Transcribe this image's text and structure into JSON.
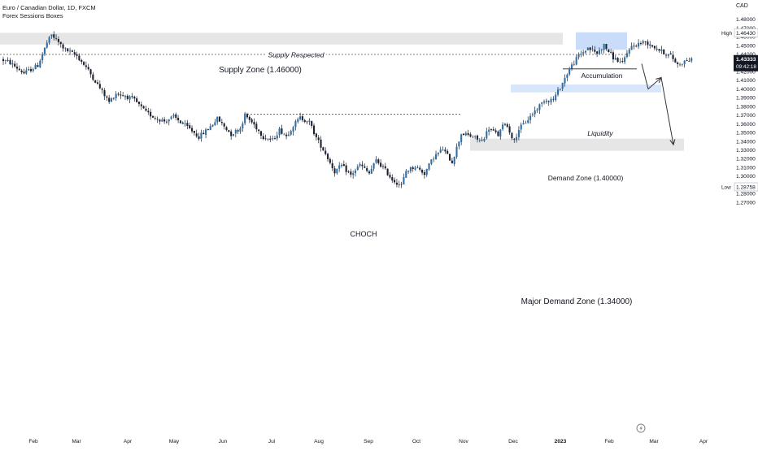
{
  "header": {
    "symbol_line": "Euro / Canadian Dollar, 1D, FXCM",
    "indicator": "Forex Sessions Boxes",
    "currency": "CAD"
  },
  "colors": {
    "up_candle": "#2f6fa8",
    "down_candle": "#1e2230",
    "zone_grey": "#e6e6e6",
    "zone_blue": "#d7e6fb",
    "accum_blue": "#c9dcfa",
    "price_label_bg": "#131722"
  },
  "chart_data": {
    "type": "candlestick",
    "y_axis": {
      "ticks": [
        "1.48000",
        "1.47000",
        "1.46000",
        "1.45000",
        "1.44000",
        "1.43000",
        "1.42000",
        "1.41000",
        "1.40000",
        "1.39000",
        "1.38000",
        "1.37000",
        "1.36000",
        "1.35000",
        "1.34000",
        "1.33000",
        "1.32000",
        "1.31000",
        "1.30000",
        "1.29000",
        "1.28000",
        "1.27000"
      ],
      "range": [
        1.2665,
        1.4858
      ]
    },
    "x_axis": {
      "ticks": [
        "Feb",
        "Mar",
        "Apr",
        "May",
        "Jun",
        "Jul",
        "Aug",
        "Sep",
        "Oct",
        "Nov",
        "Dec",
        "2023",
        "Feb",
        "Mar",
        "Apr"
      ]
    },
    "high_label": "High",
    "high_value": "1.46430",
    "low_label": "Low",
    "low_value": "1.28758",
    "last_price": "1.43333",
    "countdown": "09:42:18",
    "anchors": [
      [
        0,
        1.434
      ],
      [
        4,
        1.43
      ],
      [
        10,
        1.418
      ],
      [
        16,
        1.427
      ],
      [
        20,
        1.453
      ],
      [
        22,
        1.462
      ],
      [
        28,
        1.445
      ],
      [
        33,
        1.438
      ],
      [
        37,
        1.425
      ],
      [
        42,
        1.405
      ],
      [
        47,
        1.385
      ],
      [
        50,
        1.395
      ],
      [
        54,
        1.392
      ],
      [
        58,
        1.387
      ],
      [
        63,
        1.373
      ],
      [
        67,
        1.367
      ],
      [
        71,
        1.363
      ],
      [
        75,
        1.368
      ],
      [
        79,
        1.36
      ],
      [
        83,
        1.352
      ],
      [
        86,
        1.345
      ],
      [
        90,
        1.354
      ],
      [
        94,
        1.366
      ],
      [
        97,
        1.357
      ],
      [
        100,
        1.348
      ],
      [
        104,
        1.355
      ],
      [
        106,
        1.37
      ],
      [
        110,
        1.359
      ],
      [
        114,
        1.345
      ],
      [
        118,
        1.341
      ],
      [
        121,
        1.353
      ],
      [
        124,
        1.346
      ],
      [
        127,
        1.358
      ],
      [
        130,
        1.367
      ],
      [
        134,
        1.362
      ],
      [
        137,
        1.344
      ],
      [
        141,
        1.326
      ],
      [
        145,
        1.305
      ],
      [
        148,
        1.312
      ],
      [
        152,
        1.301
      ],
      [
        156,
        1.313
      ],
      [
        160,
        1.303
      ],
      [
        163,
        1.318
      ],
      [
        166,
        1.31
      ],
      [
        170,
        1.296
      ],
      [
        174,
        1.289
      ],
      [
        176,
        1.306
      ],
      [
        180,
        1.311
      ],
      [
        184,
        1.303
      ],
      [
        188,
        1.322
      ],
      [
        192,
        1.331
      ],
      [
        196,
        1.316
      ],
      [
        200,
        1.349
      ],
      [
        205,
        1.345
      ],
      [
        209,
        1.34
      ],
      [
        212,
        1.355
      ],
      [
        216,
        1.347
      ],
      [
        219,
        1.362
      ],
      [
        223,
        1.34
      ],
      [
        225,
        1.354
      ],
      [
        228,
        1.362
      ],
      [
        232,
        1.375
      ],
      [
        236,
        1.387
      ],
      [
        240,
        1.388
      ],
      [
        243,
        1.402
      ],
      [
        247,
        1.423
      ],
      [
        251,
        1.438
      ],
      [
        255,
        1.447
      ],
      [
        259,
        1.441
      ],
      [
        262,
        1.45
      ],
      [
        266,
        1.436
      ],
      [
        270,
        1.429
      ],
      [
        273,
        1.447
      ],
      [
        277,
        1.452
      ],
      [
        280,
        1.454
      ],
      [
        284,
        1.448
      ],
      [
        287,
        1.443
      ],
      [
        291,
        1.438
      ],
      [
        294,
        1.428
      ],
      [
        298,
        1.433
      ],
      [
        300,
        1.433
      ]
    ],
    "annotations": [
      {
        "key": "supply_respected",
        "text": "Supply Respected"
      },
      {
        "key": "supply_zone",
        "text": "Supply Zone (1.46000)",
        "range": [
          1.451,
          1.4645
        ]
      },
      {
        "key": "accumulation",
        "text": "Accumulation",
        "range": [
          1.445,
          1.465
        ]
      },
      {
        "key": "liquidity",
        "text": "Liquidity",
        "level": 1.423
      },
      {
        "key": "demand_zone",
        "text": "Demand Zone (1.40000)",
        "range": [
          1.396,
          1.405
        ]
      },
      {
        "key": "choch",
        "text": "CHOCH",
        "level": 1.371
      },
      {
        "key": "major_demand_zone",
        "text": "Major Demand Zone (1.34000)",
        "range": [
          1.329,
          1.343
        ]
      }
    ],
    "projection": [
      [
        1.428,
        1.429
      ],
      [
        1.401,
        1.4
      ],
      [
        1.413,
        1.413
      ],
      [
        1.339,
        1.336
      ]
    ]
  }
}
